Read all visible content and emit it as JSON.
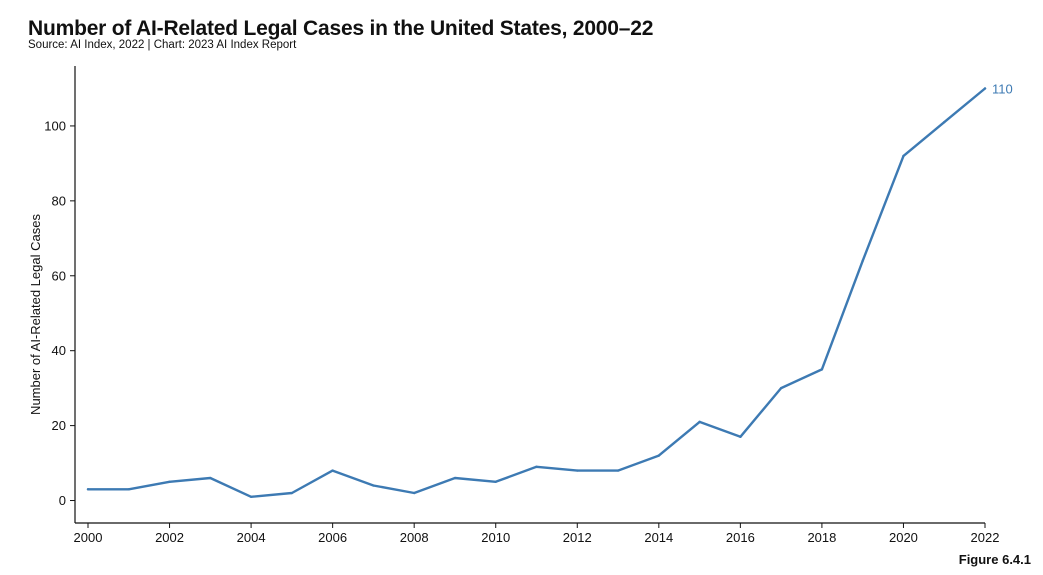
{
  "title": "Number of AI-Related Legal Cases in the United States, 2000–22",
  "subtitle": "Source: AI Index, 2022 | Chart: 2023 AI Index Report",
  "figure_label": "Figure 6.4.1",
  "colors": {
    "line": "#3d7ab3",
    "axis": "#111111"
  },
  "chart_data": {
    "type": "line",
    "ylabel": "Number of AI-Related Legal Cases",
    "xlabel": "",
    "x": [
      2000,
      2001,
      2002,
      2003,
      2004,
      2005,
      2006,
      2007,
      2008,
      2009,
      2010,
      2011,
      2012,
      2013,
      2014,
      2015,
      2016,
      2017,
      2018,
      2019,
      2020,
      2021,
      2022
    ],
    "values": [
      3,
      3,
      5,
      6,
      1,
      2,
      8,
      4,
      2,
      6,
      5,
      9,
      8,
      8,
      12,
      21,
      17,
      30,
      35,
      64,
      92,
      101,
      110
    ],
    "xticks": [
      "2000",
      "2002",
      "2004",
      "2006",
      "2008",
      "2010",
      "2012",
      "2014",
      "2016",
      "2018",
      "2020",
      "2022"
    ],
    "yticks": [
      "0",
      "20",
      "40",
      "60",
      "80",
      "100"
    ],
    "xlim": [
      2000,
      2022
    ],
    "ylim": [
      -6,
      116
    ],
    "grid": false,
    "end_label": "110"
  }
}
